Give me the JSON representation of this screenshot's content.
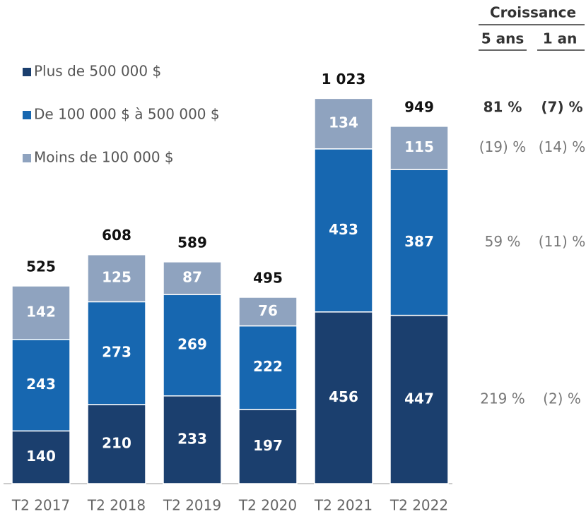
{
  "chart_data": {
    "type": "stacked_bar",
    "categories": [
      "T2 2017",
      "T2 2018",
      "T2 2019",
      "T2 2020",
      "T2 2021",
      "T2 2022"
    ],
    "series": [
      {
        "name": "Plus de 500 000 $",
        "color": "#1b3f6e",
        "values": [
          140,
          210,
          233,
          197,
          456,
          447
        ]
      },
      {
        "name": "De 100 000 $ à 500 000 $",
        "color": "#1767b0",
        "values": [
          243,
          273,
          269,
          222,
          433,
          387
        ]
      },
      {
        "name": "Moins de 100 000 $",
        "color": "#8fa3bf",
        "values": [
          142,
          125,
          87,
          76,
          134,
          115
        ]
      }
    ],
    "totals": [
      525,
      608,
      589,
      495,
      1023,
      949
    ],
    "total_labels": [
      "525",
      "608",
      "589",
      "495",
      "1 023",
      "949"
    ],
    "ylim": [
      0,
      1200
    ],
    "growth": {
      "title": "Croissance",
      "columns": [
        "5 ans",
        "1 an"
      ],
      "rows": [
        [
          "81 %",
          "(7) %"
        ],
        [
          "(19) %",
          "(14) %"
        ],
        [
          "59 %",
          "(11) %"
        ],
        [
          "219 %",
          "(2) %"
        ]
      ]
    }
  }
}
